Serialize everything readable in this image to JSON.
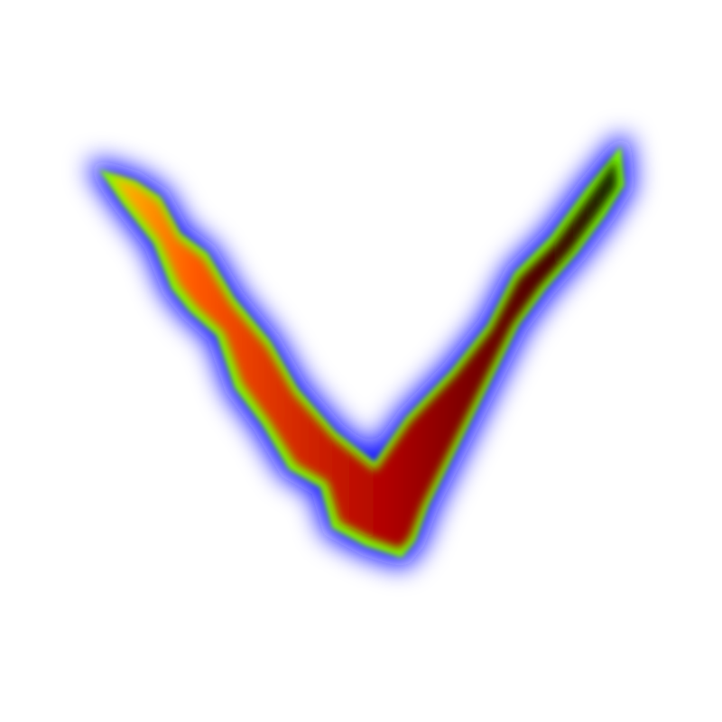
{
  "figure": {
    "shape": "v-stroke",
    "colors": {
      "background": "#ffffff",
      "glow": "#1010ff",
      "edge": "#7cff00",
      "tip_left": "#ffd000",
      "body_left": "#ff5a00",
      "body_center": "#b00000",
      "body_right": "#4a0000",
      "tip_right": "#103000"
    }
  }
}
